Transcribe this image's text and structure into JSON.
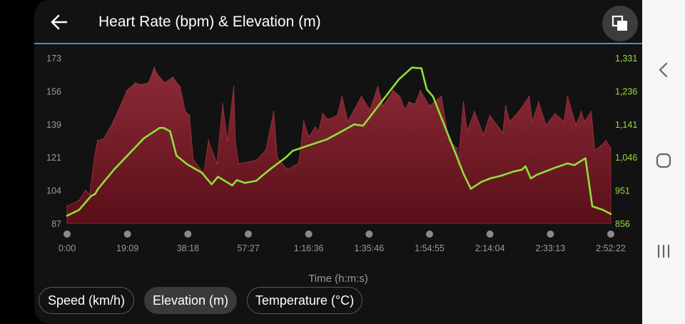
{
  "header": {
    "title": "Heart Rate (bpm) & Elevation (m)"
  },
  "icons": {
    "back": "arrow-left-icon",
    "fullscreen": "exit-fullscreen-icon",
    "nav_back": "chevron-left-icon",
    "nav_home": "circle-home-icon",
    "nav_recents": "recents-bars-icon"
  },
  "colors": {
    "accent_rule": "#2a9bd8",
    "heart_rate_fill": "#8a2a36",
    "elevation_line": "#8fe03a"
  },
  "chips": [
    {
      "label": "Speed (km/h)",
      "selected": false
    },
    {
      "label": "Elevation (m)",
      "selected": true
    },
    {
      "label": "Temperature (°C)",
      "selected": false
    }
  ],
  "chart_data": {
    "type": "area",
    "xlabel": "Time (h:m:s)",
    "x_ticks": [
      "0:00",
      "19:09",
      "38:18",
      "57:27",
      "1:16:36",
      "1:35:46",
      "1:54:55",
      "2:14:04",
      "2:33:13",
      "2:52:22"
    ],
    "y_left_ticks": [
      "173",
      "156",
      "139",
      "121",
      "104",
      "87"
    ],
    "y_right_ticks": [
      "1,331",
      "1,236",
      "1,141",
      "1,046",
      "951",
      "856"
    ],
    "x_range_seconds": [
      0,
      10342
    ],
    "y_left_range": [
      87,
      173
    ],
    "y_right_range": [
      856,
      1331
    ],
    "grid": false,
    "series": [
      {
        "name": "Heart Rate (bpm)",
        "axis": "left",
        "style": "area",
        "x": [
          0,
          232,
          350,
          430,
          470,
          520,
          580,
          700,
          880,
          1140,
          1300,
          1400,
          1550,
          1660,
          1700,
          1860,
          2010,
          2150,
          2250,
          2330,
          2400,
          2600,
          2690,
          2850,
          2960,
          3050,
          3170,
          3200,
          3260,
          3470,
          3610,
          3780,
          3930,
          4000,
          4190,
          4330,
          4400,
          4420,
          4500,
          4600,
          4720,
          4790,
          4860,
          4960,
          5140,
          5230,
          5340,
          5460,
          5600,
          5760,
          5910,
          6010,
          6200,
          6330,
          6430,
          6500,
          6620,
          6720,
          6890,
          7120,
          7260,
          7420,
          7440,
          7540,
          7610,
          7750,
          7920,
          8040,
          8290,
          8340,
          8420,
          8590,
          8790,
          8850,
          8970,
          9110,
          9280,
          9450,
          9520,
          9680,
          9780,
          9840,
          9970,
          10040,
          10140,
          10250,
          10342
        ],
        "values": [
          96,
          99,
          104,
          102,
          110,
          121,
          130,
          131,
          140,
          156,
          160,
          159,
          160,
          168,
          165,
          160,
          163,
          158,
          145,
          143,
          120,
          113,
          130,
          118,
          149,
          130,
          158,
          130,
          118,
          119,
          120,
          125,
          145,
          121,
          115,
          117,
          118,
          121,
          140,
          132,
          137,
          135,
          144,
          141,
          143,
          153,
          140,
          146,
          153,
          146,
          158,
          148,
          156,
          153,
          146,
          150,
          149,
          156,
          148,
          153,
          130,
          126,
          118,
          150,
          135,
          145,
          133,
          143,
          134,
          148,
          140,
          145,
          153,
          140,
          150,
          138,
          144,
          140,
          153,
          138,
          145,
          140,
          145,
          125,
          127,
          130,
          126
        ]
      },
      {
        "name": "Elevation (m)",
        "axis": "right",
        "style": "line",
        "x": [
          0,
          230,
          460,
          530,
          590,
          890,
          1460,
          1760,
          1840,
          1960,
          2080,
          2290,
          2560,
          2750,
          2870,
          3140,
          3230,
          3380,
          3600,
          3720,
          3900,
          4160,
          4290,
          4540,
          4940,
          5250,
          5460,
          5630,
          6310,
          6560,
          6740,
          6840,
          6960,
          7550,
          7680,
          7880,
          8050,
          8260,
          8500,
          8650,
          8720,
          8820,
          8930,
          9270,
          9520,
          9650,
          9860,
          9990,
          10190,
          10342
        ],
        "values": [
          878,
          895,
          935,
          940,
          955,
          1010,
          1100,
          1130,
          1130,
          1120,
          1050,
          1025,
          1002,
          968,
          990,
          965,
          980,
          972,
          978,
          994,
          1016,
          1045,
          1064,
          1077,
          1097,
          1122,
          1140,
          1136,
          1269,
          1303,
          1301,
          1241,
          1220,
          995,
          955,
          975,
          985,
          993,
          1005,
          1010,
          1020,
          985,
          995,
          1015,
          1028,
          1023,
          1043,
          905,
          895,
          883
        ]
      }
    ]
  }
}
